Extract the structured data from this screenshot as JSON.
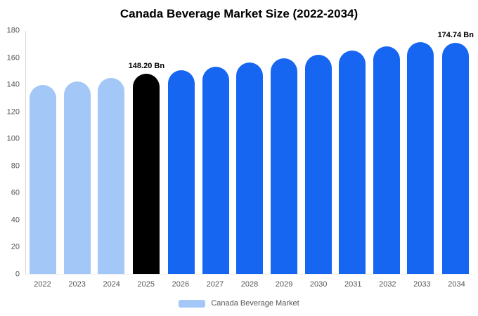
{
  "legend": {
    "label": "Canada Beverage Market",
    "swatch_color": "#a3c7f7"
  },
  "colors": {
    "historical_bar": "#a3c7f7",
    "highlight_bar": "#000000",
    "forecast_bar": "#1766f2",
    "axis_text": "#555555",
    "title_text": "#000000"
  },
  "chart_data": {
    "type": "bar",
    "title": "Canada Beverage Market Size (2022-2034)",
    "categories": [
      "2022",
      "2023",
      "2024",
      "2025",
      "2026",
      "2027",
      "2028",
      "2029",
      "2030",
      "2031",
      "2032",
      "2033",
      "2034"
    ],
    "values": [
      140.1,
      142.7,
      145.3,
      148.2,
      150.9,
      153.7,
      156.6,
      159.5,
      162.4,
      165.4,
      168.5,
      171.6,
      174.74
    ],
    "unit": "Bn",
    "bar_colors": [
      "#a3c7f7",
      "#a3c7f7",
      "#a3c7f7",
      "#000000",
      "#1766f2",
      "#1766f2",
      "#1766f2",
      "#1766f2",
      "#1766f2",
      "#1766f2",
      "#1766f2",
      "#1766f2",
      "#1766f2"
    ],
    "data_labels": {
      "2025": "148.20 Bn",
      "2034": "174.74 Bn"
    },
    "xlabel": "",
    "ylabel": "",
    "ylim": [
      0,
      180
    ],
    "yticks": [
      0,
      20,
      40,
      60,
      80,
      100,
      120,
      140,
      160,
      180
    ],
    "grid": false,
    "legend": [
      "Canada Beverage Market"
    ],
    "legend_position": "bottom"
  }
}
